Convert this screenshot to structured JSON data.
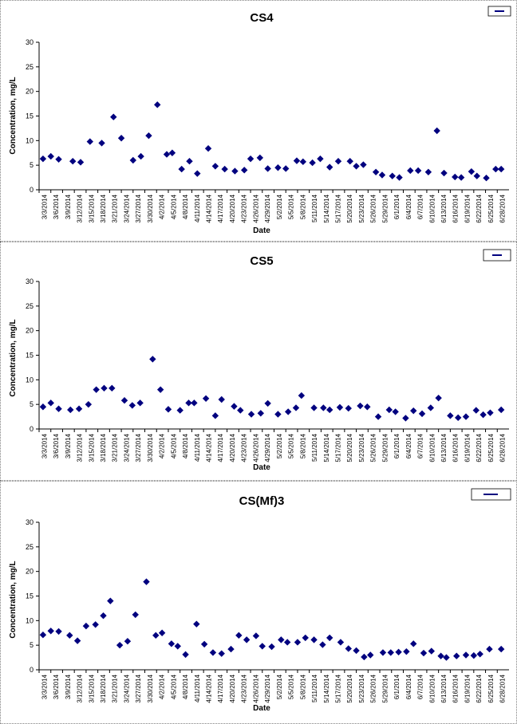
{
  "chart_data": [
    {
      "type": "scatter",
      "title": "CS4",
      "xlabel": "Date",
      "ylabel": "Concentration, mg/L",
      "ylim": [
        0,
        30
      ],
      "yticks": [
        0,
        5,
        10,
        15,
        20,
        25,
        30
      ],
      "grid": false,
      "legend": "top-right",
      "marker_color": "#00007f",
      "xticks": [
        "3/3/2014",
        "3/6/2014",
        "3/9/2014",
        "3/12/2014",
        "3/15/2014",
        "3/18/2014",
        "3/21/2014",
        "3/24/2014",
        "3/27/2014",
        "3/30/2014",
        "4/2/2014",
        "4/5/2014",
        "4/8/2014",
        "4/11/2014",
        "4/14/2014",
        "4/17/2014",
        "4/20/2014",
        "4/23/2014",
        "4/26/2014",
        "4/29/2014",
        "5/2/2014",
        "5/5/2014",
        "5/8/2014",
        "5/11/2014",
        "5/14/2014",
        "5/17/2014",
        "5/20/2014",
        "5/23/2014",
        "5/26/2014",
        "5/29/2014",
        "6/1/2014",
        "6/4/2014",
        "6/7/2014",
        "6/10/2014",
        "6/13/2014",
        "6/16/2014",
        "6/19/2014",
        "6/22/2014",
        "6/25/2014",
        "6/28/2014"
      ],
      "series": [
        {
          "x": [
            0,
            1,
            2,
            3.8,
            4.8,
            6,
            7.5,
            9,
            10,
            11.5,
            12.5,
            13.5,
            14.6,
            15.8,
            16.5,
            17.7,
            18.7,
            19.7,
            21.1,
            22,
            23.2,
            24.5,
            25.7,
            26.5,
            27.7,
            28.7,
            30,
            31,
            32.4,
            33.2,
            34.4,
            35.4,
            36.6,
            37.7,
            39.2,
            40,
            40.9,
            42.5,
            43.3,
            44.6,
            45.5,
            46.9,
            47.9,
            49.2,
            50.3,
            51.2,
            52.6,
            53.4,
            54.7,
            55.4,
            56.6,
            57.8,
            58.5
          ],
          "y": [
            6.3,
            6.8,
            6.2,
            5.8,
            5.6,
            9.8,
            9.5,
            14.8,
            10.5,
            6.0,
            6.8,
            11.0,
            17.3,
            7.2,
            7.5,
            4.2,
            5.8,
            3.3,
            8.4,
            4.8,
            4.2,
            3.8,
            4.0,
            6.3,
            6.5,
            4.3,
            4.5,
            4.3,
            5.9,
            5.7,
            5.5,
            6.3,
            4.6,
            5.8,
            5.8,
            4.8,
            5.1,
            3.6,
            3.0,
            2.8,
            2.5,
            3.9,
            3.9,
            3.6,
            12.0,
            3.4,
            2.6,
            2.5,
            3.7,
            2.8,
            2.4,
            4.2,
            4.2
          ]
        }
      ]
    },
    {
      "type": "scatter",
      "title": "CS5",
      "xlabel": "Date",
      "ylabel": "Concentration, mg/L",
      "ylim": [
        0,
        30
      ],
      "yticks": [
        0,
        5,
        10,
        15,
        20,
        25,
        30
      ],
      "grid": false,
      "legend": "top-right",
      "marker_color": "#00007f",
      "xticks": [
        "3/3/2014",
        "3/6/2014",
        "3/9/2014",
        "3/12/2014",
        "3/15/2014",
        "3/18/2014",
        "3/21/2014",
        "3/24/2014",
        "3/27/2014",
        "3/30/2014",
        "4/2/2014",
        "4/5/2014",
        "4/8/2014",
        "4/11/2014",
        "4/14/2014",
        "4/17/2014",
        "4/20/2014",
        "4/23/2014",
        "4/26/2014",
        "4/29/2014",
        "5/2/2014",
        "5/5/2014",
        "5/8/2014",
        "5/11/2014",
        "5/14/2014",
        "5/17/2014",
        "5/20/2014",
        "5/23/2014",
        "5/26/2014",
        "5/29/2014",
        "6/1/2014",
        "6/4/2014",
        "6/7/2014",
        "6/10/2014",
        "6/13/2014",
        "6/16/2014",
        "6/19/2014",
        "6/22/2014",
        "6/25/2014",
        "6/28/2014"
      ],
      "series": [
        {
          "x": [
            0,
            1,
            2,
            3.5,
            4.6,
            5.8,
            6.8,
            7.8,
            8.8,
            10.4,
            11.4,
            12.4,
            14,
            15,
            16,
            17.5,
            18.6,
            19.3,
            20.8,
            22,
            22.8,
            24.4,
            25.2,
            26.6,
            27.8,
            28.7,
            30,
            31.3,
            32.3,
            33,
            34.6,
            35.8,
            36.6,
            37.9,
            39,
            40.5,
            41.4,
            42.8,
            44.2,
            45,
            46.3,
            47.3,
            48.4,
            49.5,
            50.5,
            52,
            53,
            54,
            55.3,
            56.2,
            57.1,
            58.5
          ],
          "y": [
            4.5,
            5.3,
            4.1,
            3.9,
            4.1,
            5.0,
            8.0,
            8.3,
            8.3,
            5.8,
            4.8,
            5.3,
            14.2,
            8.0,
            4.0,
            3.8,
            5.3,
            5.3,
            6.2,
            2.7,
            6.0,
            4.6,
            3.8,
            3.0,
            3.2,
            5.2,
            3.0,
            3.5,
            4.3,
            6.8,
            4.3,
            4.3,
            3.9,
            4.4,
            4.2,
            4.7,
            4.5,
            2.5,
            3.9,
            3.5,
            2.2,
            3.7,
            3.1,
            4.3,
            6.3,
            2.7,
            2.3,
            2.5,
            3.8,
            2.9,
            3.3,
            3.9
          ]
        }
      ]
    },
    {
      "type": "scatter",
      "title": "CS(Mf)3",
      "xlabel": "Date",
      "ylabel": "Concentration, mg/L",
      "ylim": [
        0,
        30
      ],
      "yticks": [
        0,
        5,
        10,
        15,
        20,
        25,
        30
      ],
      "grid": false,
      "legend": "top-right",
      "marker_color": "#00007f",
      "xticks": [
        "3/3/2014",
        "3/6/2014",
        "3/9/2014",
        "3/12/2014",
        "3/15/2014",
        "3/18/2014",
        "3/21/2014",
        "3/24/2014",
        "3/27/2014",
        "3/30/2014",
        "4/2/2014",
        "4/5/2014",
        "4/8/2014",
        "4/11/2014",
        "4/14/2014",
        "4/17/2014",
        "4/20/2014",
        "4/23/2014",
        "4/26/2014",
        "4/29/2014",
        "5/2/2014",
        "5/5/2014",
        "5/8/2014",
        "5/11/2014",
        "5/14/2014",
        "5/17/2014",
        "5/20/2014",
        "5/23/2014",
        "5/26/2014",
        "5/29/2014",
        "6/1/2014",
        "6/4/2014",
        "6/7/2014",
        "6/10/2014",
        "6/13/2014",
        "6/16/2014",
        "6/19/2014",
        "6/22/2014",
        "6/25/2014",
        "6/28/2014"
      ],
      "series": [
        {
          "x": [
            0,
            1,
            2,
            3.4,
            4.4,
            5.5,
            6.7,
            7.7,
            8.6,
            9.8,
            10.8,
            11.8,
            13.2,
            14.4,
            15.2,
            16.4,
            17.2,
            18.2,
            19.6,
            20.6,
            21.7,
            22.8,
            24,
            25,
            26,
            27.2,
            28,
            29.2,
            30.4,
            31.2,
            32.5,
            33.5,
            34.6,
            35.7,
            36.6,
            38,
            39,
            40,
            41,
            41.8,
            43.4,
            44.4,
            45.4,
            46.4,
            47.3,
            48.6,
            49.6,
            50.8,
            51.5,
            52.8,
            54,
            55,
            55.8,
            57,
            58.5
          ],
          "y": [
            7.1,
            7.9,
            7.8,
            7.0,
            5.9,
            8.9,
            9.2,
            11.0,
            14.0,
            5.0,
            5.8,
            11.2,
            17.9,
            7.0,
            7.5,
            5.3,
            4.8,
            3.1,
            9.3,
            5.2,
            3.5,
            3.3,
            4.2,
            7.0,
            6.1,
            6.9,
            4.8,
            4.7,
            6.1,
            5.6,
            5.6,
            6.5,
            6.1,
            5.1,
            6.5,
            5.6,
            4.3,
            3.9,
            2.6,
            3.0,
            3.5,
            3.5,
            3.6,
            3.7,
            5.3,
            3.4,
            3.8,
            2.8,
            2.5,
            2.8,
            3.0,
            2.9,
            3.2,
            4.2,
            4.2
          ]
        }
      ]
    }
  ]
}
